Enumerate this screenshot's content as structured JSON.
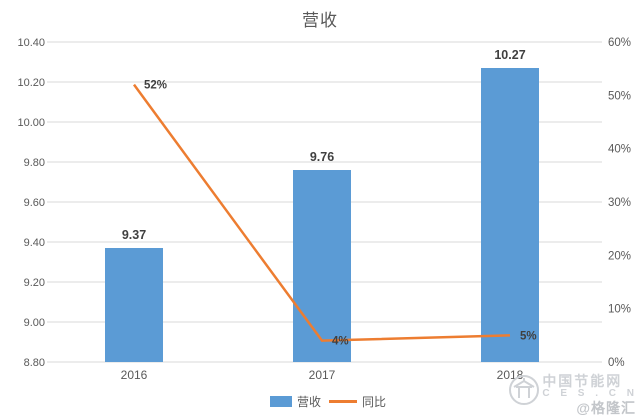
{
  "title": "营收",
  "colors": {
    "bar": "#5B9BD5",
    "line": "#ED7D31",
    "grid": "#D9D9D9",
    "axis_text": "#595959",
    "value_text": "#404040",
    "watermark": "#cfd2d6"
  },
  "legend": [
    {
      "label": "营收",
      "type": "bar"
    },
    {
      "label": "同比",
      "type": "line"
    }
  ],
  "watermark": {
    "line1": "中国节能网",
    "line2": "C E S . C N",
    "handle": "@格隆汇"
  },
  "chart_data": {
    "type": "bar+line combo",
    "title": "营收",
    "categories": [
      "2016",
      "2017",
      "2018"
    ],
    "series": [
      {
        "name": "营收",
        "type": "bar",
        "axis": "left",
        "values": [
          9.37,
          9.76,
          10.27
        ],
        "labels": [
          "9.37",
          "9.76",
          "10.27"
        ],
        "color": "#5B9BD5"
      },
      {
        "name": "同比",
        "type": "line",
        "axis": "right",
        "values": [
          52,
          4,
          5
        ],
        "labels": [
          "52%",
          "4%",
          "5%"
        ],
        "color": "#ED7D31"
      }
    ],
    "left_axis": {
      "min": 8.8,
      "max": 10.4,
      "step": 0.2,
      "ticks": [
        "10.40",
        "10.20",
        "10.00",
        "9.80",
        "9.60",
        "9.40",
        "9.20",
        "9.00",
        "8.80"
      ]
    },
    "right_axis": {
      "min": 0,
      "max": 60,
      "step": 10,
      "ticks": [
        "60%",
        "50%",
        "40%",
        "30%",
        "20%",
        "10%",
        "0%"
      ]
    },
    "grid": true,
    "legend_position": "bottom"
  }
}
